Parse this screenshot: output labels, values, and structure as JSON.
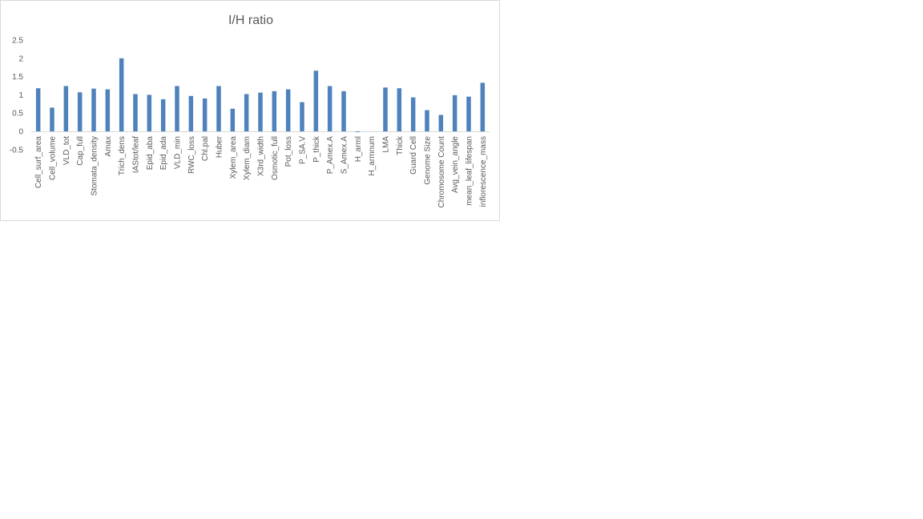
{
  "chart_data": {
    "type": "bar",
    "title": "I/H ratio",
    "xlabel": "",
    "ylabel": "",
    "ylim": [
      -0.5,
      2.5
    ],
    "yticks": [
      -0.5,
      0,
      0.5,
      1,
      1.5,
      2,
      2.5
    ],
    "ytick_labels": [
      "-0.5",
      "0",
      "0.5",
      "1",
      "1.5",
      "2",
      "2.5"
    ],
    "grid": false,
    "legend": "none",
    "bar_color": "#4f81bd",
    "categories": [
      "Cell_surf_area",
      "Cell_volume",
      "VLD_tot",
      "Cap_full",
      "Stomata_density",
      "Amax",
      "Trich_dens",
      "IAStot/leaf",
      "Epid_aba",
      "Epid_ada",
      "VLD_min",
      "RWC_loss",
      "Chl.pal",
      "Huber",
      "Xylem_area",
      "Xylem_diam",
      "X3rd_width",
      "Osmotic_full",
      "Pot_loss",
      "P_SA.V",
      "P_thick",
      "P_Amex.A",
      "S_Amex.A",
      "H_arml",
      "H_armnum",
      "LMA",
      "Thick",
      "Guard Cell",
      "Genome Size",
      "Chromosome Count",
      "Avg_vein_angle",
      "mean_leaf_lifespan",
      "inflorescence_mass"
    ],
    "values": [
      1.18,
      0.65,
      1.24,
      1.07,
      1.17,
      1.15,
      2.0,
      1.02,
      1.0,
      0.88,
      1.24,
      0.97,
      0.9,
      1.24,
      0.62,
      1.02,
      1.06,
      1.1,
      1.15,
      0.8,
      1.66,
      1.24,
      1.1,
      -0.02,
      0.0,
      1.2,
      1.18,
      0.93,
      0.58,
      0.45,
      0.99,
      0.95,
      1.33
    ]
  }
}
